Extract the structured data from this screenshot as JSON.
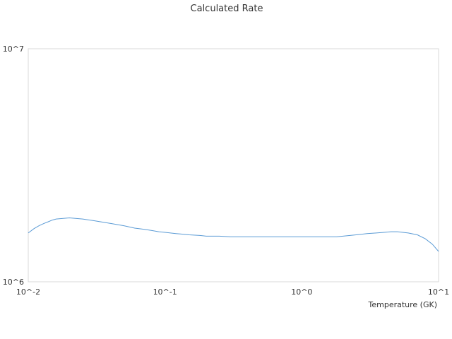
{
  "chart_data": {
    "type": "line",
    "title": "Calculated Rate",
    "xlabel": "Temperature (GK)",
    "ylabel": "",
    "xscale": "log",
    "yscale": "log",
    "xlim": [
      0.01,
      10
    ],
    "ylim": [
      1000000,
      10000000
    ],
    "x_tick_labels": [
      "10^-2",
      "10^-1",
      "10^0",
      "10^1"
    ],
    "y_tick_labels": [
      "10^6",
      "10^7"
    ],
    "grid": false,
    "legend": "none",
    "series": [
      {
        "color": "#5b9bd5",
        "x": [
          0.01,
          0.011,
          0.012,
          0.013,
          0.014,
          0.015,
          0.016,
          0.018,
          0.02,
          0.025,
          0.03,
          0.04,
          0.05,
          0.06,
          0.07,
          0.08,
          0.09,
          0.1,
          0.12,
          0.15,
          0.18,
          0.2,
          0.25,
          0.3,
          0.35,
          0.4,
          0.5,
          0.6,
          0.7,
          0.8,
          1.0,
          1.2,
          1.5,
          1.8,
          2.0,
          2.5,
          3.0,
          3.5,
          4.0,
          4.5,
          5.0,
          6.0,
          7.0,
          8.0,
          9.0,
          10.0
        ],
        "values": [
          1620000,
          1690000,
          1740000,
          1780000,
          1810000,
          1840000,
          1860000,
          1870000,
          1880000,
          1860000,
          1830000,
          1780000,
          1740000,
          1700000,
          1680000,
          1660000,
          1640000,
          1630000,
          1610000,
          1590000,
          1580000,
          1570000,
          1570000,
          1560000,
          1560000,
          1560000,
          1560000,
          1560000,
          1560000,
          1560000,
          1560000,
          1560000,
          1560000,
          1560000,
          1570000,
          1590000,
          1610000,
          1620000,
          1630000,
          1640000,
          1640000,
          1620000,
          1590000,
          1530000,
          1450000,
          1350000
        ]
      }
    ]
  }
}
